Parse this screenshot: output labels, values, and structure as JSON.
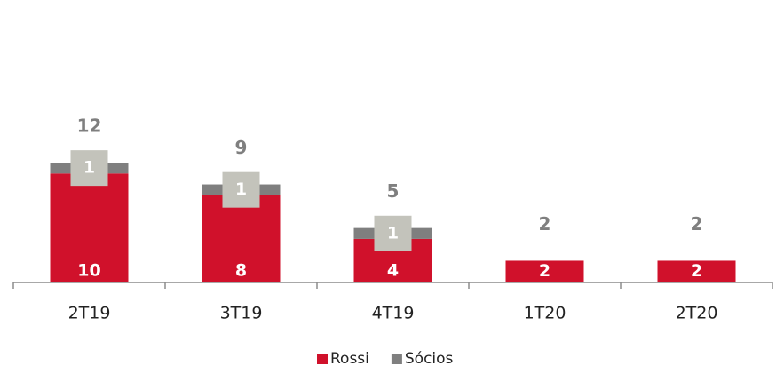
{
  "chart_data": {
    "type": "stacked_bar",
    "categories": [
      "2T19",
      "3T19",
      "4T19",
      "1T20",
      "2T20"
    ],
    "series": [
      {
        "name": "Rossi",
        "color": "#d0112b",
        "values": [
          10,
          8,
          4,
          2,
          2
        ]
      },
      {
        "name": "Sócios",
        "color": "#7f7f7f",
        "values": [
          1,
          1,
          1,
          0,
          0
        ]
      }
    ],
    "totals": [
      12,
      9,
      5,
      2,
      2
    ],
    "ylim": [
      0,
      22
    ],
    "legend": "bottom"
  }
}
